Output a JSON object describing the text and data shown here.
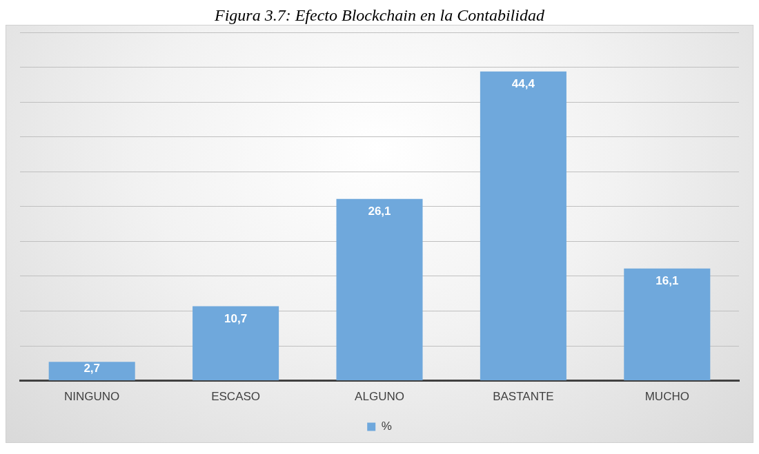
{
  "chart_data": {
    "type": "bar",
    "title": "Figura 3.7: Efecto Blockchain en la Contabilidad",
    "categories": [
      "NINGUNO",
      "ESCASO",
      "ALGUNO",
      "BASTANTE",
      "MUCHO"
    ],
    "series": [
      {
        "name": "%",
        "color": "#6fa8dc",
        "values": [
          2.7,
          10.7,
          26.1,
          44.4,
          16.1
        ],
        "value_labels": [
          "2,7",
          "10,7",
          "26,1",
          "44,4",
          "16,1"
        ]
      }
    ],
    "ylim": [
      0,
      50
    ],
    "yticks": [
      {
        "value": 0,
        "label": null
      },
      {
        "value": 5,
        "label": null
      },
      {
        "value": 10,
        "label": null
      },
      {
        "value": 15,
        "label": null
      },
      {
        "value": 20,
        "label": null
      },
      {
        "value": 25,
        "label": null
      },
      {
        "value": 30,
        "label": null
      },
      {
        "value": 35,
        "label": null
      },
      {
        "value": 40,
        "label": null
      },
      {
        "value": 45,
        "label": null
      },
      {
        "value": 50,
        "label": null
      }
    ],
    "tick_labels": "x",
    "grid": "y",
    "legend": "bottom"
  }
}
